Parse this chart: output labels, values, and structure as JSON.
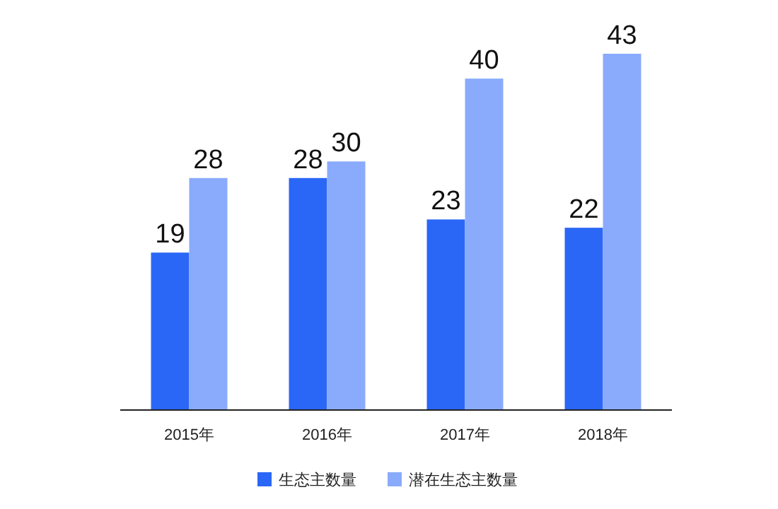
{
  "chart_data": {
    "type": "bar",
    "categories": [
      "2015年",
      "2016年",
      "2017年",
      "2018年"
    ],
    "series": [
      {
        "name": "生态主数量",
        "color": "#2b67f6",
        "values": [
          19,
          28,
          23,
          22
        ]
      },
      {
        "name": "潜在生态主数量",
        "color": "#8aabfb",
        "values": [
          28,
          30,
          40,
          43
        ]
      }
    ],
    "data_labels": true,
    "legend": "bottom"
  }
}
